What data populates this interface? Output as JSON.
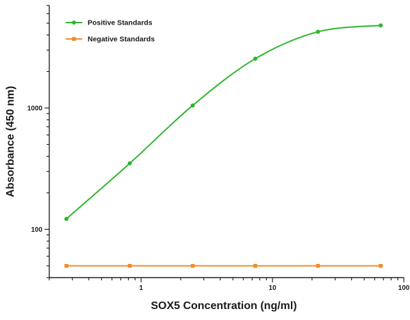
{
  "chart_data": {
    "type": "line",
    "xlabel": "SOX5 Concentration (ng/ml)",
    "ylabel": "Absorbance (450 nm)",
    "x_scale": "log",
    "y_scale": "log",
    "xlim": [
      0.2,
      100
    ],
    "ylim": [
      40,
      7000
    ],
    "x_ticks": [
      {
        "value": 1,
        "label": "1"
      },
      {
        "value": 10,
        "label": "10"
      },
      {
        "value": 100,
        "label": "100"
      }
    ],
    "y_ticks": [
      {
        "value": 100,
        "label": "100"
      },
      {
        "value": 1000,
        "label": "1000"
      }
    ],
    "grid": false,
    "legend_position": "top-left",
    "series": [
      {
        "name": "Positive Standards",
        "color": "#2db52d",
        "marker": "circle",
        "x": [
          0.27,
          0.82,
          2.47,
          7.4,
          22.2,
          66.7
        ],
        "y": [
          122,
          350,
          1050,
          2550,
          4250,
          4800
        ]
      },
      {
        "name": "Negative Standards",
        "color": "#f28c28",
        "marker": "square",
        "x": [
          0.27,
          0.82,
          2.47,
          7.4,
          22.2,
          66.7
        ],
        "y": [
          50,
          50,
          50,
          50,
          50,
          50
        ]
      }
    ]
  }
}
